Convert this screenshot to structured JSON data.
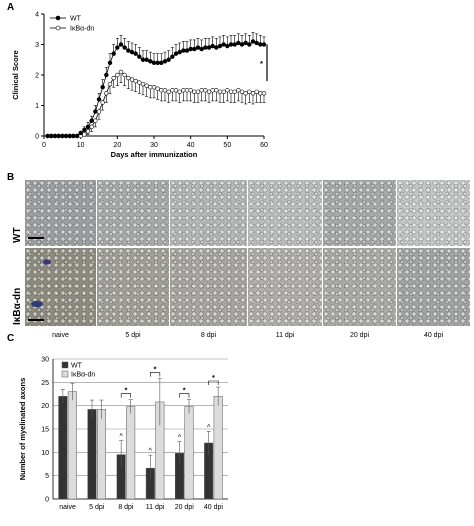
{
  "panels": {
    "a": {
      "letter": "A"
    },
    "b": {
      "letter": "B",
      "row_labels": [
        "WT",
        "IκBα-dn"
      ],
      "column_labels": [
        "naive",
        "5 dpi",
        "8 dpi",
        "11 dpi",
        "20 dpi",
        "40 dpi"
      ],
      "image_tones": {
        "wt": [
          "#9c9fa0",
          "#a9abab",
          "#b6b8b8",
          "#bdbfbe",
          "#a7aaa8",
          "#c6c7c7"
        ],
        "dn": [
          "#8d8c7f",
          "#a09f98",
          "#a7a6a1",
          "#b0afab",
          "#aaaaa6",
          "#a3a4a4"
        ]
      }
    },
    "c": {
      "letter": "C"
    }
  },
  "chart_data": [
    {
      "type": "line",
      "xlabel": "Days after immunization",
      "ylabel": "Clinical Score",
      "xlim": [
        0,
        60
      ],
      "ylim": [
        0,
        4
      ],
      "xticks": [
        0,
        10,
        20,
        30,
        40,
        50,
        60
      ],
      "yticks": [
        0,
        1,
        2,
        3,
        4
      ],
      "x": [
        1,
        2,
        3,
        4,
        5,
        6,
        7,
        8,
        9,
        10,
        11,
        12,
        13,
        14,
        15,
        16,
        17,
        18,
        19,
        20,
        21,
        22,
        23,
        24,
        25,
        26,
        27,
        28,
        29,
        30,
        31,
        32,
        33,
        34,
        35,
        36,
        37,
        38,
        39,
        40,
        41,
        42,
        43,
        44,
        45,
        46,
        47,
        48,
        49,
        50,
        51,
        52,
        53,
        54,
        55,
        56,
        57,
        58,
        59,
        60
      ],
      "series": [
        {
          "name": "WT",
          "marker": "filled-circle",
          "color": "#000000",
          "values": [
            0,
            0,
            0,
            0,
            0,
            0,
            0,
            0,
            0,
            0.1,
            0.2,
            0.3,
            0.5,
            0.8,
            1.2,
            1.6,
            2.0,
            2.4,
            2.7,
            2.9,
            3.0,
            2.9,
            2.8,
            2.75,
            2.7,
            2.6,
            2.5,
            2.5,
            2.45,
            2.4,
            2.4,
            2.4,
            2.45,
            2.5,
            2.6,
            2.7,
            2.75,
            2.8,
            2.8,
            2.85,
            2.85,
            2.9,
            2.85,
            2.9,
            2.9,
            2.95,
            2.9,
            2.95,
            3.0,
            2.95,
            3.0,
            3.0,
            3.05,
            3.0,
            3.05,
            3.0,
            3.1,
            3.05,
            3.0,
            3.0
          ],
          "error": [
            0,
            0,
            0,
            0,
            0,
            0,
            0,
            0,
            0,
            0.05,
            0.1,
            0.15,
            0.15,
            0.2,
            0.2,
            0.25,
            0.25,
            0.3,
            0.3,
            0.3,
            0.3,
            0.3,
            0.3,
            0.3,
            0.3,
            0.3,
            0.3,
            0.3,
            0.3,
            0.3,
            0.3,
            0.3,
            0.3,
            0.3,
            0.3,
            0.3,
            0.3,
            0.3,
            0.3,
            0.3,
            0.3,
            0.3,
            0.3,
            0.3,
            0.3,
            0.3,
            0.3,
            0.3,
            0.3,
            0.3,
            0.3,
            0.3,
            0.3,
            0.3,
            0.3,
            0.3,
            0.3,
            0.3,
            0.3,
            0.25
          ]
        },
        {
          "name": "IκBα-dn",
          "marker": "open-circle",
          "color": "#000000",
          "values": [
            0,
            0,
            0,
            0,
            0,
            0,
            0,
            0,
            0,
            0,
            0.05,
            0.15,
            0.3,
            0.5,
            0.8,
            1.1,
            1.4,
            1.7,
            1.9,
            2.0,
            2.1,
            2.0,
            1.9,
            1.85,
            1.8,
            1.75,
            1.7,
            1.65,
            1.6,
            1.6,
            1.55,
            1.5,
            1.5,
            1.45,
            1.5,
            1.5,
            1.45,
            1.5,
            1.5,
            1.5,
            1.45,
            1.45,
            1.5,
            1.5,
            1.45,
            1.5,
            1.5,
            1.45,
            1.45,
            1.5,
            1.45,
            1.45,
            1.5,
            1.45,
            1.4,
            1.45,
            1.4,
            1.45,
            1.4,
            1.4
          ],
          "error": [
            0,
            0,
            0,
            0,
            0,
            0,
            0,
            0,
            0,
            0,
            0.05,
            0.1,
            0.15,
            0.2,
            0.25,
            0.25,
            0.3,
            0.3,
            0.3,
            0.35,
            0.35,
            0.35,
            0.35,
            0.35,
            0.35,
            0.35,
            0.35,
            0.35,
            0.35,
            0.35,
            0.35,
            0.35,
            0.35,
            0.35,
            0.35,
            0.35,
            0.35,
            0.35,
            0.35,
            0.35,
            0.35,
            0.35,
            0.35,
            0.35,
            0.35,
            0.35,
            0.35,
            0.35,
            0.35,
            0.35,
            0.35,
            0.35,
            0.35,
            0.35,
            0.35,
            0.35,
            0.35,
            0.35,
            0.3,
            0.3
          ]
        }
      ],
      "significance": {
        "label": "*",
        "x": 60,
        "y_range": [
          1.8,
          3.0
        ]
      },
      "legend_position": "top-left",
      "grid": false
    },
    {
      "type": "bar",
      "ylabel": "Number of myelinated axons",
      "categories": [
        "naive",
        "5 dpi",
        "8 dpi",
        "11 dpi",
        "20 dpi",
        "40 dpi"
      ],
      "ylim": [
        0,
        30
      ],
      "yticks": [
        0,
        5,
        10,
        15,
        20,
        25,
        30
      ],
      "series": [
        {
          "name": "WT",
          "color": "#333333",
          "values": [
            22,
            19.2,
            9.5,
            6.6,
            9.8,
            12
          ],
          "error": [
            1.5,
            2.0,
            3.0,
            2.8,
            2.5,
            2.5
          ]
        },
        {
          "name": "IκBα-dn",
          "color": "#dcdcdc",
          "values": [
            23,
            19.2,
            19.8,
            20.8,
            19.8,
            22
          ],
          "error": [
            1.8,
            2.0,
            1.5,
            5.0,
            1.5,
            2.0
          ]
        }
      ],
      "caret_label": "^",
      "caret_categories": [
        "8 dpi",
        "11 dpi",
        "20 dpi",
        "40 dpi"
      ],
      "star_label": "*",
      "star_categories": [
        "8 dpi",
        "11 dpi",
        "20 dpi",
        "40 dpi"
      ],
      "legend_position": "top-left",
      "grid": true
    }
  ]
}
